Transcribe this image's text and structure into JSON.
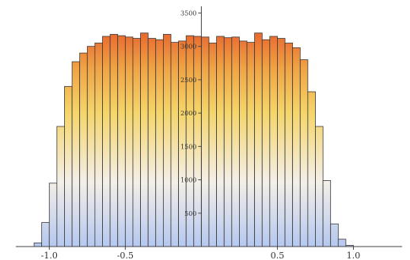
{
  "chart_data": {
    "type": "bar",
    "title": "",
    "xlabel": "",
    "ylabel": "",
    "x_ticks": [
      {
        "value": -1.0,
        "label": "-1.0"
      },
      {
        "value": -0.5,
        "label": "-0.5"
      },
      {
        "value": 0.5,
        "label": "0.5"
      },
      {
        "value": 1.0,
        "label": "1.0"
      }
    ],
    "y_ticks": [
      500,
      1000,
      1500,
      2000,
      2500,
      3000,
      3500
    ],
    "xlim": [
      -1.22,
      1.32
    ],
    "ylim": [
      0,
      3600
    ],
    "bin_width": 0.05,
    "bin_start": -1.1,
    "values": [
      55,
      360,
      950,
      1800,
      2400,
      2770,
      2900,
      3000,
      3050,
      3150,
      3180,
      3160,
      3140,
      3120,
      3200,
      3120,
      3100,
      3180,
      3060,
      3080,
      3160,
      3150,
      3140,
      3050,
      3150,
      3130,
      3140,
      3080,
      3060,
      3200,
      3100,
      3150,
      3120,
      3050,
      2980,
      2800,
      2320,
      1800,
      990,
      340,
      110,
      18
    ],
    "gradient_stops": [
      "#b5c8f0",
      "#f4efe8",
      "#f5d56a",
      "#f0a445",
      "#e8642e"
    ]
  }
}
